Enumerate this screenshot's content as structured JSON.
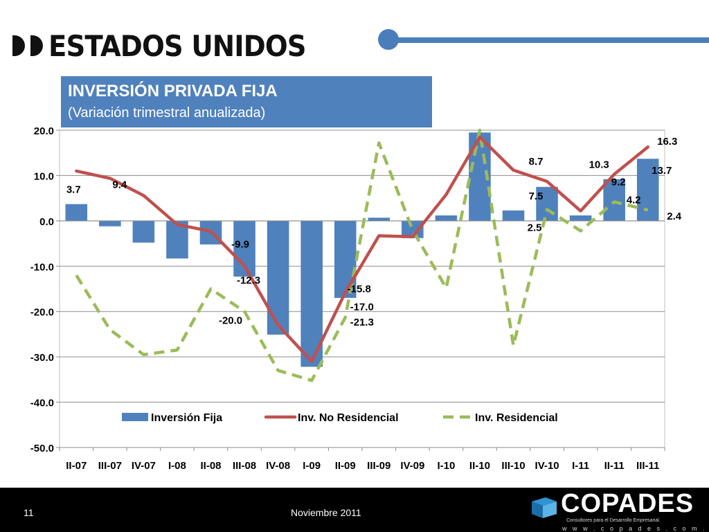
{
  "slide": {
    "title": "ESTADOS UNIDOS",
    "page_number": "11",
    "date": "Noviembre 2011"
  },
  "logo": {
    "name": "COPADES",
    "tagline": "Consultores para el Desarrollo Empresarial.",
    "url": "w w w . c o p a d e s . c o m . s v"
  },
  "colors": {
    "bars": "#4f81bd",
    "non_residential": "#c0504d",
    "residential": "#9bbb59",
    "accent": "#4a7ebb"
  },
  "chart_data": {
    "type": "bar",
    "title": "INVERSIÓN PRIVADA FIJA",
    "subtitle": "(Variación trimestral anualizada)",
    "categories": [
      "II-07",
      "III-07",
      "IV-07",
      "I-08",
      "II-08",
      "III-08",
      "IV-08",
      "I-09",
      "II-09",
      "III-09",
      "IV-09",
      "I-10",
      "II-10",
      "III-10",
      "IV-10",
      "I-11",
      "II-11",
      "III-11"
    ],
    "ylim": [
      -50,
      20
    ],
    "yticks": [
      "20.0",
      "10.0",
      "0.0",
      "-10.0",
      "-20.0",
      "-30.0",
      "-40.0",
      "-50.0"
    ],
    "grid": true,
    "legend_position": "bottom",
    "series": [
      {
        "name": "Inversión Fija",
        "type": "bar",
        "values": [
          3.7,
          -1.2,
          -4.8,
          -8.3,
          -5.2,
          -12.3,
          -25.1,
          -32.2,
          -17.0,
          0.7,
          -3.8,
          1.2,
          19.5,
          2.3,
          7.5,
          1.2,
          9.2,
          13.7
        ]
      },
      {
        "name": "Inv. No Residencial",
        "type": "line",
        "values": [
          11.0,
          9.4,
          5.6,
          -0.8,
          -2.3,
          -9.9,
          -23.0,
          -31.0,
          -15.8,
          -3.3,
          -3.5,
          5.8,
          18.5,
          11.2,
          8.7,
          2.2,
          10.3,
          16.3
        ]
      },
      {
        "name": "Inv. Residencial",
        "type": "dashed-line",
        "values": [
          -12.0,
          -24.0,
          -29.5,
          -28.5,
          -15.0,
          -20.0,
          -33.0,
          -35.2,
          -21.3,
          17.2,
          -2.0,
          -14.8,
          20.0,
          -27.5,
          2.5,
          -2.2,
          4.2,
          2.4
        ]
      }
    ],
    "data_labels": [
      {
        "text": "3.7",
        "series": 0,
        "index": 0
      },
      {
        "text": "9.4",
        "series": 1,
        "index": 1
      },
      {
        "text": "-9.9",
        "series": 1,
        "index": 5
      },
      {
        "text": "-12.3",
        "series": 0,
        "index": 5
      },
      {
        "text": "-20.0",
        "series": 2,
        "index": 5
      },
      {
        "text": "-15.8",
        "series": 1,
        "index": 8
      },
      {
        "text": "-17.0",
        "series": 0,
        "index": 8
      },
      {
        "text": "-21.3",
        "series": 2,
        "index": 8
      },
      {
        "text": "8.7",
        "series": 1,
        "index": 14
      },
      {
        "text": "7.5",
        "series": 0,
        "index": 14
      },
      {
        "text": "2.5",
        "series": 2,
        "index": 14
      },
      {
        "text": "10.3",
        "series": 1,
        "index": 16
      },
      {
        "text": "9.2",
        "series": 0,
        "index": 16
      },
      {
        "text": "4.2",
        "series": 2,
        "index": 16
      },
      {
        "text": "16.3",
        "series": 1,
        "index": 17
      },
      {
        "text": "13.7",
        "series": 0,
        "index": 17
      },
      {
        "text": "2.4",
        "series": 2,
        "index": 17
      }
    ]
  }
}
